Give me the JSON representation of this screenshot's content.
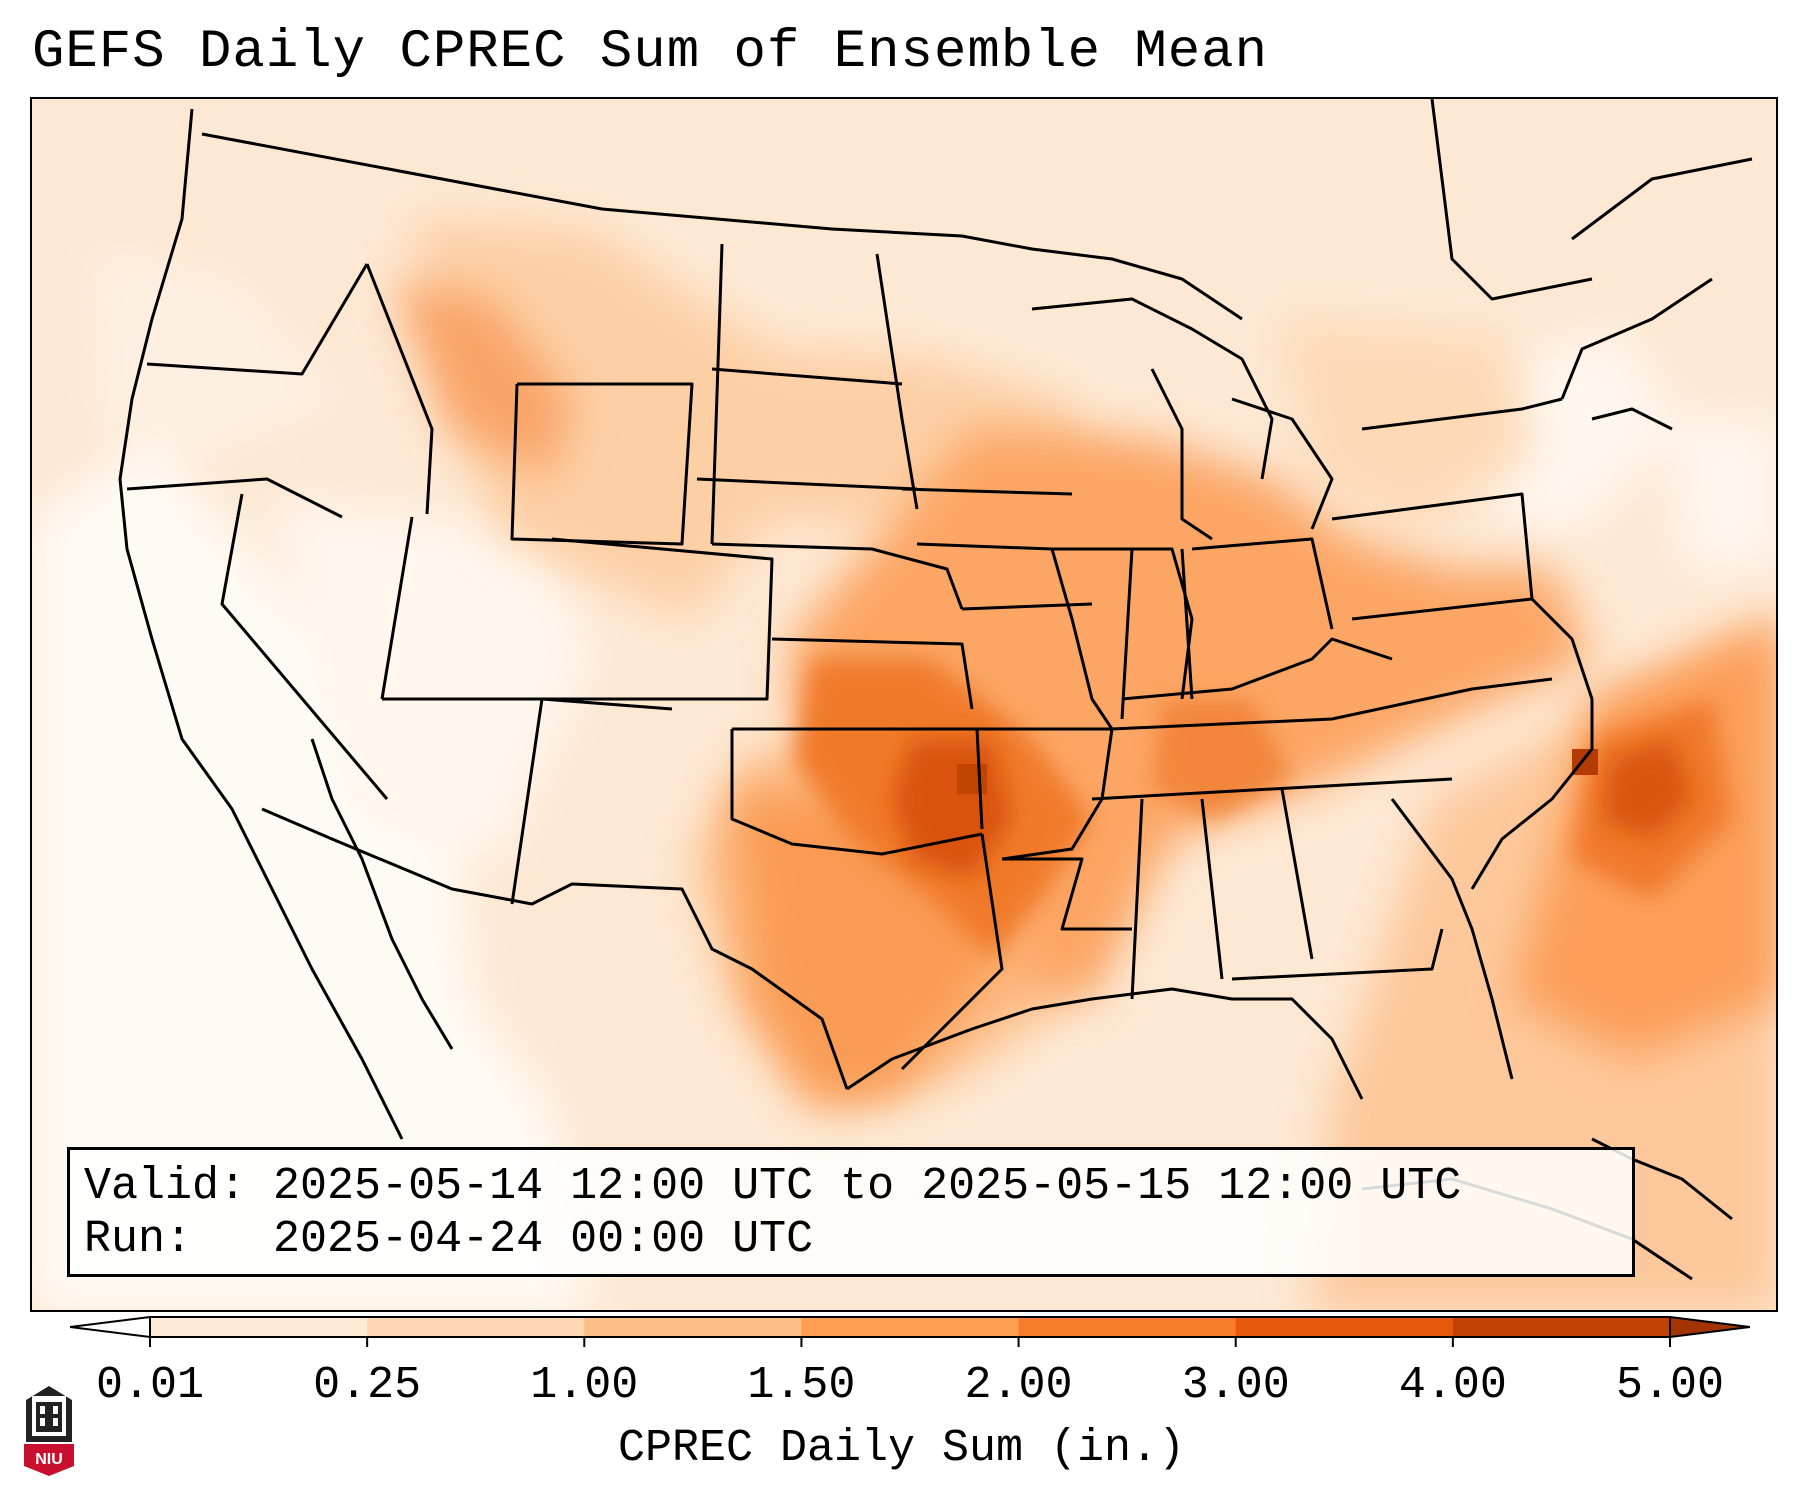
{
  "title": "GEFS Daily CPREC Sum of Ensemble Mean",
  "info": {
    "valid_label": "Valid:",
    "valid_value": "2025-05-14 12:00 UTC to 2025-05-15 12:00 UTC",
    "run_label": "Run:",
    "run_value": "2025-04-24 00:00 UTC"
  },
  "colorbar": {
    "label": "CPREC Daily Sum (in.)",
    "ticks": [
      "0.01",
      "0.25",
      "1.00",
      "1.50",
      "2.00",
      "3.00",
      "4.00",
      "5.00"
    ],
    "colors": [
      "#fdebd6",
      "#fdd8b2",
      "#fdbf86",
      "#fd9e53",
      "#f87d2a",
      "#e5590f",
      "#c24203",
      "#a23503"
    ],
    "extend": "both"
  },
  "logo": {
    "text": "NIU",
    "icon": "university-tower-logo"
  },
  "map": {
    "projection": "lambert-conformal",
    "region": "Contiguous United States",
    "palette": {
      "ocean": "#fde8d3",
      "dry": "#fff4ea",
      "light": "#fdd7b3",
      "moderate": "#fcae73",
      "heavy": "#f5893a",
      "very_heavy": "#e2620f",
      "extreme": "#c24203",
      "border": "#000000"
    }
  }
}
